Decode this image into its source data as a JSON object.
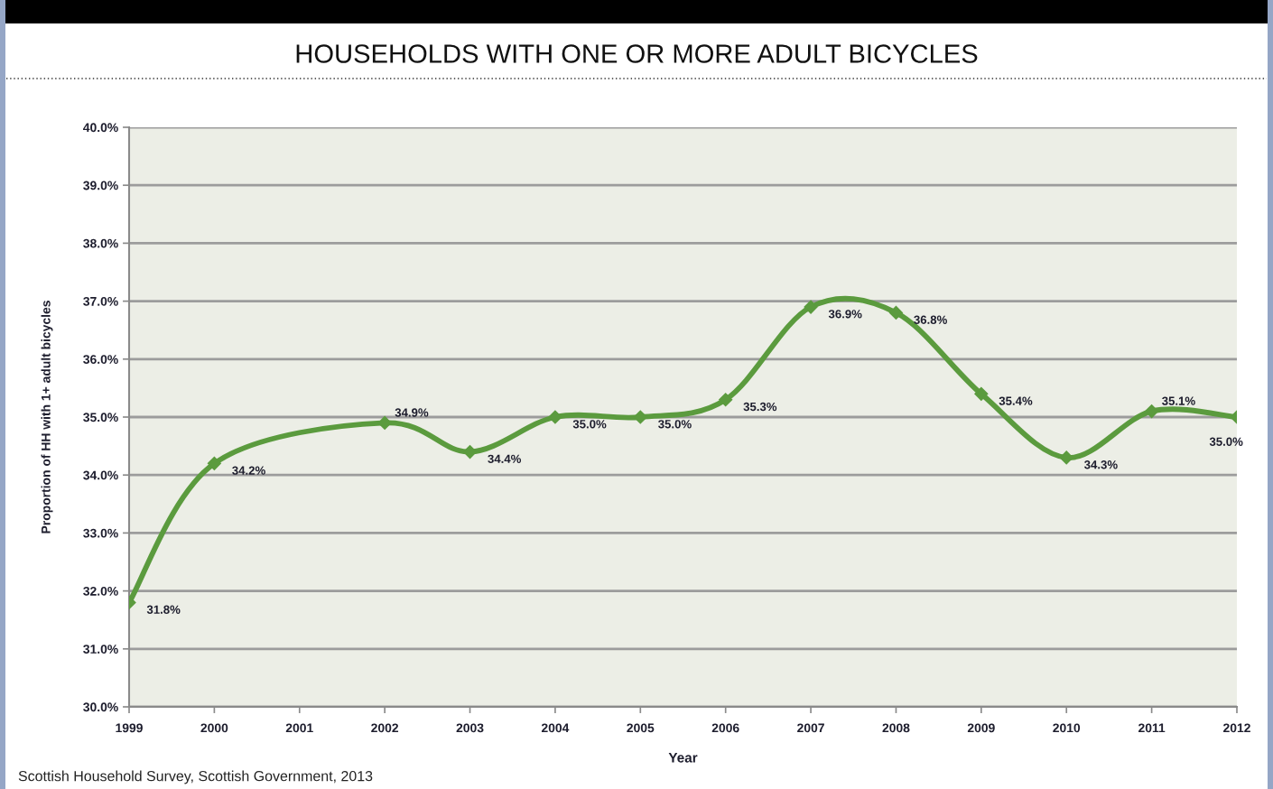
{
  "chart_data": {
    "type": "line",
    "title": "HOUSEHOLDS WITH ONE OR MORE ADULT BICYCLES",
    "xlabel": "Year",
    "ylabel": "Proportion of HH with 1+ adult bicycles",
    "annotations": [
      "Scottish Household Survey, Scottish Government, 2013"
    ],
    "x": [
      1999,
      2000,
      2002,
      2003,
      2004,
      2005,
      2006,
      2007,
      2008,
      2009,
      2010,
      2011,
      2012
    ],
    "series": [
      {
        "color": "#5b9b3e",
        "values": [
          31.8,
          34.2,
          34.9,
          34.4,
          35.0,
          35.0,
          35.3,
          36.9,
          36.8,
          35.4,
          34.3,
          35.1,
          35.0
        ],
        "value_labels": [
          "31.8%",
          "34.2%",
          "34.9%",
          "34.4%",
          "35.0%",
          "35.0%",
          "35.3%",
          "36.9%",
          "36.8%",
          "35.4%",
          "34.3%",
          "35.1%",
          "35.0%"
        ]
      }
    ],
    "xlim": [
      1999,
      2012
    ],
    "xticks": [
      1999,
      2000,
      2001,
      2002,
      2003,
      2004,
      2005,
      2006,
      2007,
      2008,
      2009,
      2010,
      2011,
      2012
    ],
    "ylim": [
      30,
      40
    ],
    "yticks": [
      {
        "value": 30,
        "label": "30.0%"
      },
      {
        "value": 31,
        "label": "31.0%"
      },
      {
        "value": 32,
        "label": "32.0%"
      },
      {
        "value": 33,
        "label": "33.0%"
      },
      {
        "value": 34,
        "label": "34.0%"
      },
      {
        "value": 35,
        "label": "35.0%"
      },
      {
        "value": 36,
        "label": "36.0%"
      },
      {
        "value": 37,
        "label": "37.0%"
      },
      {
        "value": 38,
        "label": "38.0%"
      },
      {
        "value": 39,
        "label": "39.0%"
      },
      {
        "value": 40,
        "label": "40.0%"
      }
    ],
    "grid": "y",
    "marker": "diamond",
    "line_style": "solid"
  }
}
